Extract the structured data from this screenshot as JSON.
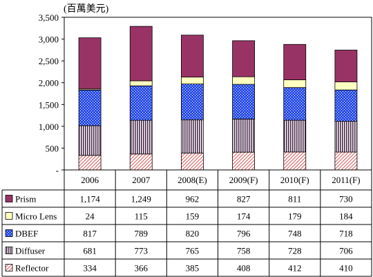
{
  "chart_data": {
    "type": "bar",
    "stacked": true,
    "unit_label": "(百萬美元)",
    "categories": [
      "2006",
      "2007",
      "2008(E)",
      "2009(F)",
      "2010(F)",
      "2011(F)"
    ],
    "ylim": [
      0,
      3500
    ],
    "yticks": [
      0,
      500,
      1000,
      1500,
      2000,
      2500,
      3000,
      3500
    ],
    "ytick_labels": [
      "-",
      "500",
      "1,000",
      "1,500",
      "2,000",
      "2,500",
      "3,000",
      "3,500"
    ],
    "grid": false,
    "legend": "data-table-left",
    "series": [
      {
        "name": "Reflector",
        "values": [
          334,
          366,
          385,
          408,
          412,
          410
        ],
        "labels": [
          "334",
          "366",
          "385",
          "408",
          "412",
          "410"
        ],
        "color": "#e89a9a",
        "pattern": "diagonal"
      },
      {
        "name": "Diffuser",
        "values": [
          681,
          773,
          765,
          758,
          728,
          706
        ],
        "labels": [
          "681",
          "773",
          "765",
          "758",
          "728",
          "706"
        ],
        "color": "#5a3a5a",
        "pattern": "vertical"
      },
      {
        "name": "DBEF",
        "values": [
          817,
          789,
          820,
          796,
          748,
          718
        ],
        "labels": [
          "817",
          "789",
          "820",
          "796",
          "748",
          "718"
        ],
        "color": "#3a5ee0",
        "pattern": "dots"
      },
      {
        "name": "Micro Lens",
        "values": [
          24,
          115,
          159,
          174,
          179,
          184
        ],
        "labels": [
          "24",
          "115",
          "159",
          "174",
          "179",
          "184"
        ],
        "color": "#ffffc0",
        "pattern": "solid"
      },
      {
        "name": "Prism",
        "values": [
          1174,
          1249,
          962,
          827,
          811,
          730
        ],
        "labels": [
          "1,174",
          "1,249",
          "962",
          "827",
          "811",
          "730"
        ],
        "color": "#993366",
        "pattern": "solid"
      }
    ],
    "table_row_order": [
      "Prism",
      "Micro Lens",
      "DBEF",
      "Diffuser",
      "Reflector"
    ]
  }
}
